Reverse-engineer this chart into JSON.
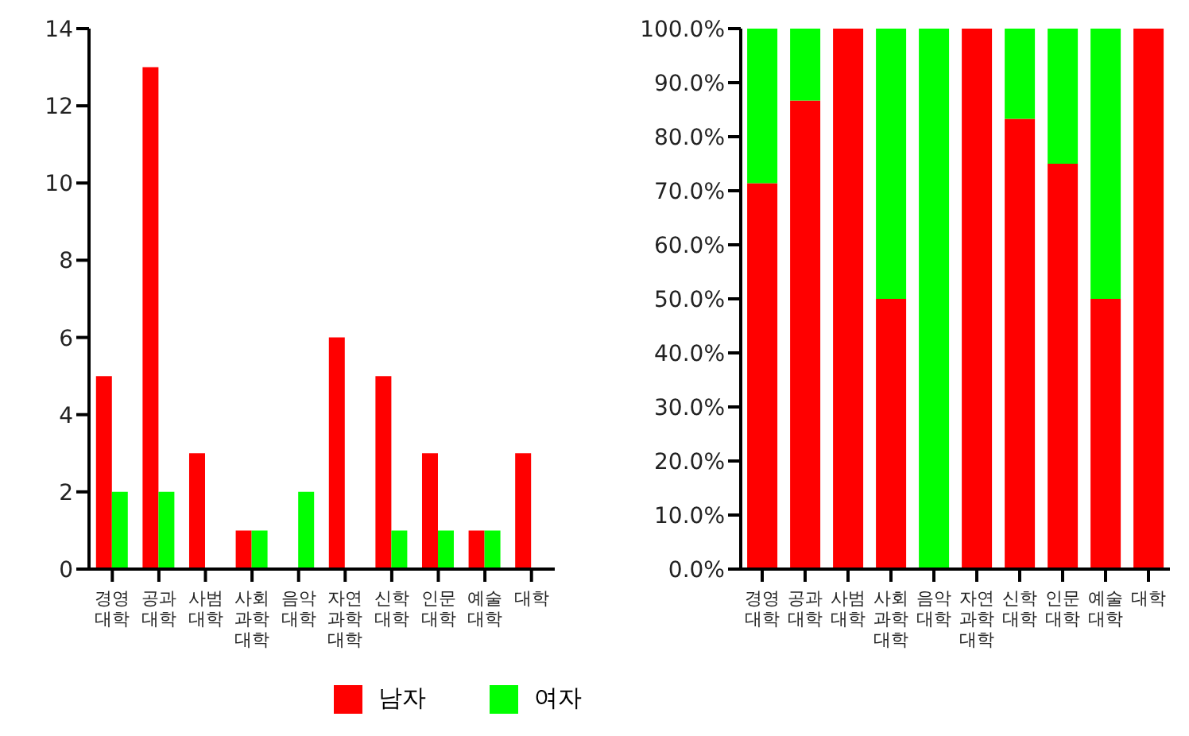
{
  "chart_data": [
    {
      "type": "bar",
      "categories": [
        "경영대학",
        "공과대학",
        "사범대학",
        "사회과학대학",
        "음악대학",
        "자연과학대학",
        "신학대학",
        "인문대학",
        "예술대학",
        "대학"
      ],
      "series": [
        {
          "name": "남자",
          "color": "#ff0000",
          "values": [
            5,
            13,
            3,
            1,
            0,
            6,
            5,
            3,
            1,
            3
          ]
        },
        {
          "name": "여자",
          "color": "#00ff00",
          "values": [
            2,
            2,
            0,
            1,
            2,
            0,
            1,
            1,
            1,
            0
          ]
        }
      ],
      "ylim": [
        0,
        14
      ],
      "yticks": [
        0,
        2,
        4,
        6,
        8,
        10,
        12,
        14
      ],
      "legend": "bottom",
      "grid": false
    },
    {
      "type": "bar",
      "stacked": true,
      "categories": [
        "경영대학",
        "공과대학",
        "사범대학",
        "사회과학대학",
        "음악대학",
        "자연과학대학",
        "신학대학",
        "인문대학",
        "예술대학",
        "대학"
      ],
      "series": [
        {
          "color": "#ff0000",
          "values": [
            71.4,
            86.7,
            100,
            50,
            0,
            100,
            83.3,
            75,
            50,
            100
          ]
        },
        {
          "color": "#00ff00",
          "values": [
            28.6,
            13.3,
            0,
            50,
            100,
            0,
            16.7,
            25,
            50,
            0
          ]
        }
      ],
      "ylim": [
        0,
        100
      ],
      "yticks": [
        {
          "value": 0,
          "label": "0.0%"
        },
        {
          "value": 10,
          "label": "10.0%"
        },
        {
          "value": 20,
          "label": "20.0%"
        },
        {
          "value": 30,
          "label": "30.0%"
        },
        {
          "value": 40,
          "label": "40.0%"
        },
        {
          "value": 50,
          "label": "50.0%"
        },
        {
          "value": 60,
          "label": "60.0%"
        },
        {
          "value": 70,
          "label": "70.0%"
        },
        {
          "value": 80,
          "label": "80.0%"
        },
        {
          "value": 90,
          "label": "90.0%"
        },
        {
          "value": 100,
          "label": "100.0%"
        }
      ],
      "grid": false
    }
  ]
}
